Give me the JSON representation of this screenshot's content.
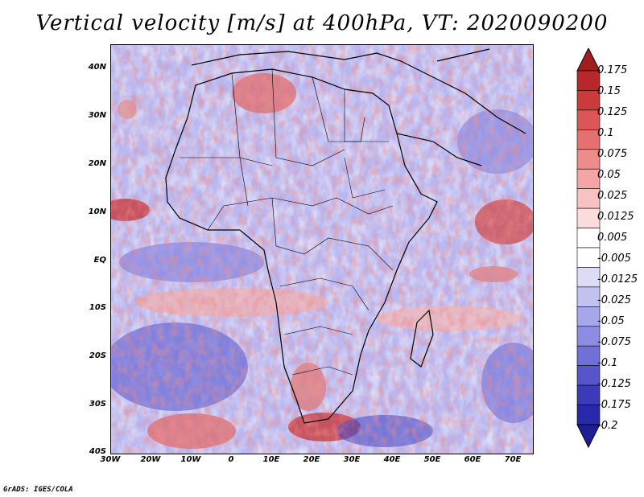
{
  "title": "Vertical velocity [m/s] at 400hPa, VT: 2020090200",
  "footer": "GrADS: IGES/COLA",
  "lat_ticks": [
    "40N",
    "30N",
    "20N",
    "10N",
    "EQ",
    "10S",
    "20S",
    "30S",
    "40S"
  ],
  "lon_ticks": [
    "30W",
    "20W",
    "10W",
    "0",
    "10E",
    "20E",
    "30E",
    "40E",
    "50E",
    "60E",
    "70E"
  ],
  "colorbar": {
    "labels": [
      "0.175",
      "0.15",
      "0.125",
      "0.1",
      "0.075",
      "0.05",
      "0.025",
      "0.0125",
      "0.005",
      "-0.005",
      "-0.0125",
      "-0.025",
      "-0.05",
      "-0.075",
      "-0.1",
      "-0.125",
      "-0.175",
      "-0.2"
    ],
    "colors": [
      "#b8282a",
      "#cc3b3b",
      "#dc5656",
      "#e67070",
      "#ee8c8c",
      "#f4a6a6",
      "#f8c2c2",
      "#fbdcdc",
      "#ffffff",
      "#ffffff",
      "#dcdcf8",
      "#c2c2f2",
      "#a6a6ea",
      "#8c8ce2",
      "#7070d8",
      "#5656ca",
      "#3b3bba",
      "#2828aa"
    ],
    "top_arrow_color": "#a01e1e",
    "bottom_arrow_color": "#1e1e96"
  },
  "map": {
    "lon_range": [
      -30,
      75
    ],
    "lat_range": [
      -40,
      45
    ],
    "ocean_color": "#d8d8ff",
    "land_outline_color": "#000000"
  }
}
